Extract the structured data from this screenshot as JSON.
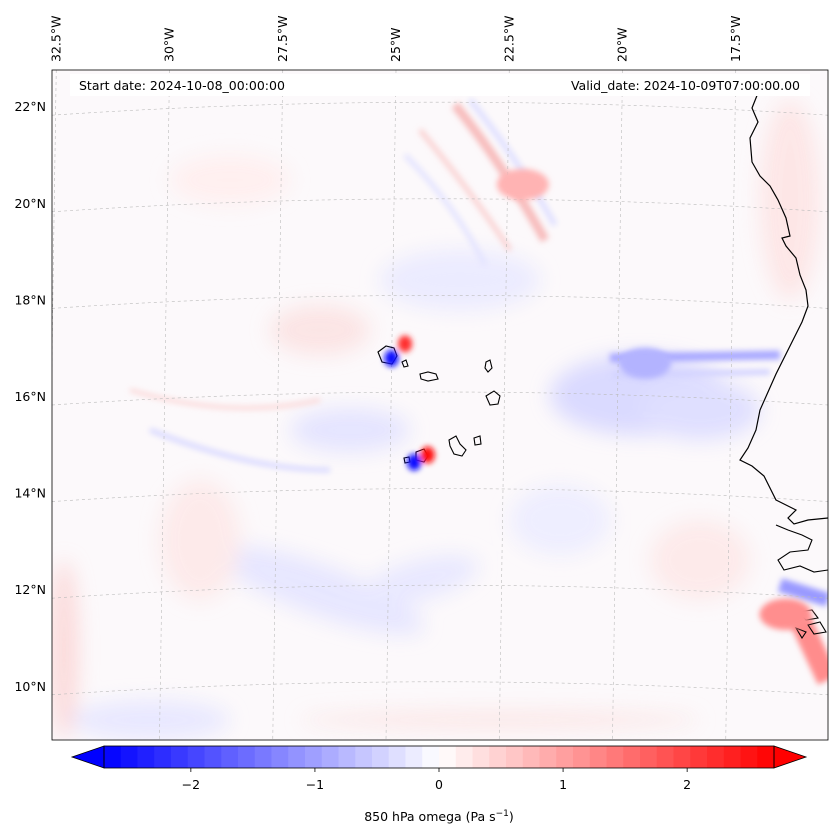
{
  "map": {
    "header_start": "Start date: 2024-10-08_00:00:00",
    "header_valid": "Valid_date: 2024-10-09T07:00:00.00",
    "lon_labels": [
      {
        "lon": -32.5,
        "text": "32.5°W"
      },
      {
        "lon": -30.0,
        "text": "30°W"
      },
      {
        "lon": -27.5,
        "text": "27.5°W"
      },
      {
        "lon": -25.0,
        "text": "25°W"
      },
      {
        "lon": -22.5,
        "text": "22.5°W"
      },
      {
        "lon": -20.0,
        "text": "20°W"
      },
      {
        "lon": -17.5,
        "text": "17.5°W"
      }
    ],
    "lat_labels": [
      {
        "lat": 22,
        "text": "22°N"
      },
      {
        "lat": 20,
        "text": "20°N"
      },
      {
        "lat": 18,
        "text": "18°N"
      },
      {
        "lat": 16,
        "text": "16°N"
      },
      {
        "lat": 14,
        "text": "14°N"
      },
      {
        "lat": 12,
        "text": "12°N"
      },
      {
        "lat": 10,
        "text": "10°N"
      }
    ],
    "features": [
      {
        "name": "santo-antao-downdraft",
        "lon": -25.1,
        "lat": 16.8,
        "omega": -2.6
      },
      {
        "name": "santo-antao-updraft",
        "lon": -24.8,
        "lat": 17.1,
        "omega": 2.2
      },
      {
        "name": "fogo-downdraft",
        "lon": -24.6,
        "lat": 14.65,
        "omega": -2.6
      },
      {
        "name": "fogo-updraft",
        "lon": -24.3,
        "lat": 14.8,
        "omega": 2.6
      },
      {
        "name": "band-east-downdraft",
        "lon": -19.5,
        "lat": 16.7,
        "omega": -0.8
      },
      {
        "name": "northeast-wave-updraft",
        "lon": -22.2,
        "lat": 20.4,
        "omega": 0.8
      },
      {
        "name": "coast-south-updraft",
        "lon": -16.4,
        "lat": 11.5,
        "omega": 1.2
      }
    ]
  },
  "colorbar": {
    "label": "850 hPa omega (Pa s",
    "label_sup": "−1",
    "label_end": ")",
    "vmin": -2.7,
    "vmax": 2.7,
    "ticks": [
      {
        "value": -2,
        "text": "−2"
      },
      {
        "value": -1,
        "text": "−1"
      },
      {
        "value": 0,
        "text": "0"
      },
      {
        "value": 1,
        "text": "1"
      },
      {
        "value": 2,
        "text": "2"
      }
    ],
    "color_negative": "#0000ff",
    "color_zero": "#ffffff",
    "color_positive": "#ff0000"
  }
}
